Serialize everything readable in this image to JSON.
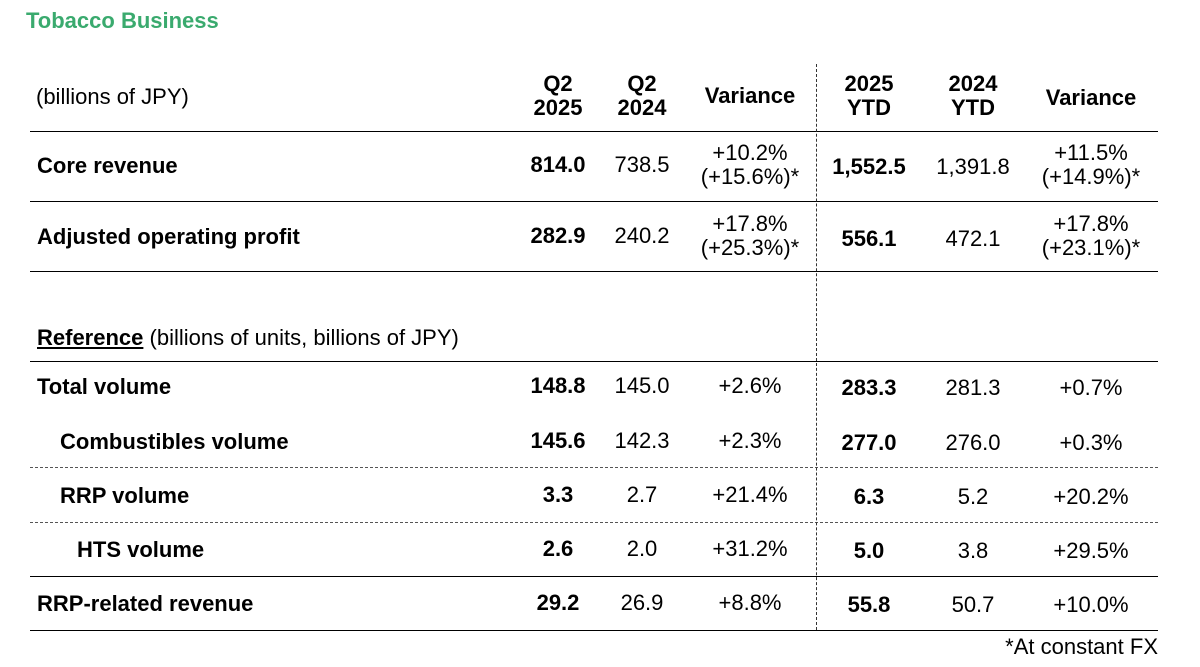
{
  "title": "Tobacco Business",
  "unit_label": "(billions of JPY)",
  "headers": {
    "q2_2025": [
      "Q2",
      "2025"
    ],
    "q2_2024": [
      "Q2",
      "2024"
    ],
    "variance_q": "Variance",
    "ytd_2025": [
      "2025",
      "YTD"
    ],
    "ytd_2024": [
      "2024",
      "YTD"
    ],
    "variance_ytd": "Variance"
  },
  "rows": [
    {
      "label": "Core revenue",
      "q2_2025": "814.0",
      "q2_2024": "738.5",
      "var_q": [
        "+10.2%",
        "(+15.6%)*"
      ],
      "ytd_2025": "1,552.5",
      "ytd_2024": "1,391.8",
      "var_ytd": [
        "+11.5%",
        "(+14.9%)*"
      ]
    },
    {
      "label": "Adjusted operating profit",
      "q2_2025": "282.9",
      "q2_2024": "240.2",
      "var_q": [
        "+17.8%",
        "(+25.3%)*"
      ],
      "ytd_2025": "556.1",
      "ytd_2024": "472.1",
      "var_ytd": [
        "+17.8%",
        "(+23.1%)*"
      ]
    }
  ],
  "reference": {
    "label": "Reference",
    "suffix": " (billions of units, billions of JPY)"
  },
  "ref_rows": [
    {
      "label": "Total volume",
      "q2_2025": "148.8",
      "q2_2024": "145.0",
      "var_q": "+2.6%",
      "ytd_2025": "283.3",
      "ytd_2024": "281.3",
      "var_ytd": "+0.7%"
    },
    {
      "label": "Combustibles volume",
      "q2_2025": "145.6",
      "q2_2024": "142.3",
      "var_q": "+2.3%",
      "ytd_2025": "277.0",
      "ytd_2024": "276.0",
      "var_ytd": "+0.3%"
    },
    {
      "label": "RRP volume",
      "q2_2025": "3.3",
      "q2_2024": "2.7",
      "var_q": "+21.4%",
      "ytd_2025": "6.3",
      "ytd_2024": "5.2",
      "var_ytd": "+20.2%"
    },
    {
      "label": "HTS volume",
      "q2_2025": "2.6",
      "q2_2024": "2.0",
      "var_q": "+31.2%",
      "ytd_2025": "5.0",
      "ytd_2024": "3.8",
      "var_ytd": "+29.5%"
    },
    {
      "label": "RRP-related revenue",
      "q2_2025": "29.2",
      "q2_2024": "26.9",
      "var_q": "+8.8%",
      "ytd_2025": "55.8",
      "ytd_2024": "50.7",
      "var_ytd": "+10.0%"
    }
  ],
  "footnote": "*At constant FX",
  "colors": {
    "title_green": "#3aaa6e"
  }
}
